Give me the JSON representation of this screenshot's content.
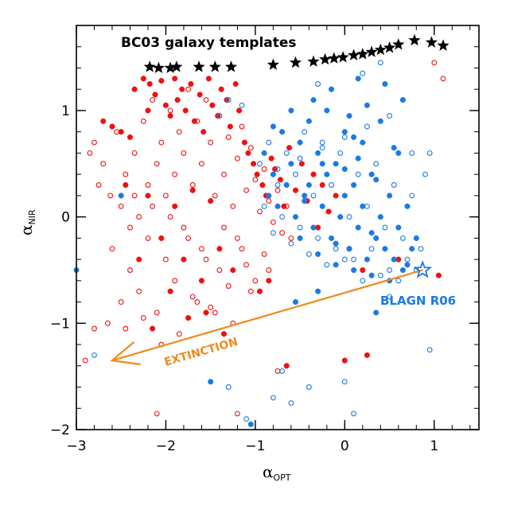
{
  "chart_data": {
    "type": "scatter",
    "title": "",
    "xlabel": {
      "main": "α",
      "sub": "OPT"
    },
    "ylabel": {
      "main": "α",
      "sub": "NIR"
    },
    "xlim": [
      -3,
      1.5
    ],
    "ylim": [
      -2,
      1.8
    ],
    "xticks": [
      -3,
      -2,
      -1,
      0,
      1
    ],
    "xtick_labels": [
      "−3",
      "−2",
      "−1",
      "0",
      "1"
    ],
    "yticks": [
      -2,
      -1,
      0,
      1
    ],
    "ytick_labels": [
      "−2",
      "−1",
      "0",
      "1"
    ],
    "colors": {
      "red": "#ee1111",
      "blue": "#1a7ae6",
      "orange": "#f08a1c",
      "black": "#000000"
    },
    "annotations": {
      "bc03": "BC03 galaxy templates",
      "blagn": "BLAGN R06",
      "extinction": "EXTINCTION"
    },
    "extinction_arrow": {
      "from": [
        0.87,
        -0.5
      ],
      "to": [
        -2.6,
        -1.35
      ]
    },
    "blagn_point": [
      0.87,
      -0.5
    ],
    "bc03_templates": {
      "x": [
        -2.18,
        -2.08,
        -1.95,
        -1.88,
        -1.63,
        -1.45,
        -1.27,
        -0.8,
        -0.55,
        -0.35,
        -0.22,
        -0.12,
        -0.02,
        0.1,
        0.2,
        0.3,
        0.4,
        0.5,
        0.6,
        0.78,
        0.97,
        1.1
      ],
      "y": [
        1.41,
        1.4,
        1.4,
        1.41,
        1.41,
        1.41,
        1.41,
        1.43,
        1.45,
        1.46,
        1.48,
        1.49,
        1.5,
        1.52,
        1.53,
        1.55,
        1.57,
        1.59,
        1.62,
        1.66,
        1.64,
        1.61
      ]
    },
    "series": [
      {
        "name": "red filled",
        "color": "red",
        "marker": "filled-circle",
        "x": [
          -2.7,
          -2.6,
          -2.5,
          -2.4,
          -2.35,
          -2.25,
          -2.2,
          -2.18,
          -2.12,
          -2.05,
          -2.0,
          -1.95,
          -1.9,
          -1.87,
          -1.82,
          -1.78,
          -1.72,
          -1.68,
          -1.62,
          -1.58,
          -1.52,
          -1.48,
          -1.42,
          -1.38,
          -1.32,
          -1.28,
          -1.22,
          -1.18,
          -1.12,
          -1.08,
          -1.02,
          -0.98,
          -0.92,
          -0.88,
          -0.82,
          -0.78,
          -0.72,
          -0.68,
          -0.62,
          -0.55,
          -0.48,
          -0.42,
          -0.35,
          -0.3,
          -0.25,
          -0.18,
          -0.1,
          0.05,
          0.2,
          0.6,
          1.05,
          -2.45,
          -2.2,
          -1.9,
          -1.7,
          -1.5,
          -2.05,
          -1.8,
          -1.6,
          -1.4,
          -2.3,
          -1.95,
          -1.55,
          -1.25,
          -0.95,
          -2.15,
          -1.75,
          -1.35,
          -0.85,
          -0.65,
          0.0,
          0.25
        ],
        "y": [
          0.9,
          0.85,
          0.8,
          0.75,
          1.2,
          1.3,
          1.0,
          1.25,
          1.15,
          1.28,
          1.05,
          0.95,
          1.3,
          1.1,
          1.2,
          1.0,
          1.25,
          0.9,
          1.15,
          0.8,
          1.3,
          1.05,
          0.95,
          1.2,
          1.1,
          0.85,
          1.25,
          1.0,
          0.7,
          0.6,
          0.5,
          0.4,
          0.3,
          0.2,
          0.55,
          0.45,
          0.35,
          0.1,
          0.65,
          0.25,
          0.5,
          0.15,
          0.4,
          -0.1,
          0.3,
          0.05,
          0.2,
          -0.3,
          -0.5,
          -0.4,
          -0.55,
          0.3,
          0.2,
          0.1,
          0.25,
          0.15,
          -0.2,
          -0.4,
          -0.6,
          -0.3,
          -0.4,
          -0.7,
          -0.9,
          -0.5,
          -0.7,
          -1.05,
          -0.95,
          -1.1,
          -0.6,
          -1.4,
          -1.35,
          -1.3
        ]
      },
      {
        "name": "red open",
        "color": "red",
        "marker": "open-circle",
        "x": [
          -2.85,
          -2.8,
          -2.75,
          -2.7,
          -2.62,
          -2.55,
          -2.5,
          -2.45,
          -2.4,
          -2.35,
          -2.3,
          -2.25,
          -2.2,
          -2.15,
          -2.1,
          -2.05,
          -2.0,
          -1.95,
          -1.9,
          -1.85,
          -1.8,
          -1.75,
          -1.7,
          -1.65,
          -1.6,
          -1.55,
          -1.5,
          -1.45,
          -1.4,
          -1.35,
          -1.3,
          -1.25,
          -1.2,
          -1.15,
          -1.1,
          -1.05,
          -1.0,
          -0.95,
          -0.9,
          -0.85,
          -0.8,
          -0.75,
          -0.7,
          -0.65,
          -0.6,
          -2.6,
          -2.4,
          -2.2,
          -2.0,
          -1.8,
          -1.6,
          -1.4,
          -1.2,
          -1.0,
          -2.5,
          -2.3,
          -2.1,
          -1.9,
          -1.7,
          -1.5,
          -1.3,
          -1.1,
          -0.9,
          -2.65,
          -2.45,
          -2.25,
          -2.05,
          -1.85,
          -1.65,
          -1.45,
          -1.25,
          -1.05,
          -0.85,
          -2.35,
          -2.15,
          -1.95,
          -1.75,
          -1.55,
          -1.35,
          -1.15,
          -2.8,
          -2.1,
          -1.2,
          -0.75,
          1.0,
          1.1,
          -2.9
        ],
        "y": [
          0.6,
          0.7,
          0.3,
          0.5,
          0.2,
          0.8,
          0.1,
          0.4,
          -0.1,
          0.6,
          0.0,
          0.9,
          0.3,
          1.1,
          0.5,
          0.7,
          0.2,
          1.0,
          0.4,
          0.8,
          0.6,
          1.2,
          0.3,
          0.9,
          0.5,
          1.1,
          0.7,
          0.2,
          0.95,
          0.4,
          0.75,
          0.1,
          0.55,
          0.85,
          0.25,
          0.65,
          0.35,
          0.05,
          0.45,
          0.15,
          -0.05,
          0.25,
          -0.15,
          0.1,
          -0.2,
          -0.3,
          -0.5,
          -0.2,
          -0.4,
          -0.1,
          -0.3,
          -0.5,
          -0.2,
          -0.6,
          -0.8,
          -0.7,
          -0.9,
          -0.6,
          -0.75,
          -0.85,
          -0.65,
          -0.45,
          -0.35,
          -1.0,
          -1.05,
          -0.95,
          -1.2,
          -1.1,
          -0.8,
          -0.9,
          -1.0,
          -0.7,
          -0.5,
          0.2,
          0.1,
          0.0,
          -0.2,
          -0.4,
          -0.1,
          -0.3,
          -1.05,
          -1.85,
          -1.85,
          -1.45,
          1.45,
          1.3,
          -1.35
        ]
      },
      {
        "name": "blue filled",
        "color": "blue",
        "marker": "filled-circle",
        "x": [
          -0.9,
          -0.8,
          -0.7,
          -0.6,
          -0.5,
          -0.4,
          -0.3,
          -0.2,
          -0.1,
          0.0,
          0.1,
          0.2,
          0.3,
          0.4,
          0.5,
          0.6,
          0.7,
          0.8,
          -0.85,
          -0.75,
          -0.65,
          -0.55,
          -0.45,
          -0.35,
          -0.25,
          -0.15,
          -0.05,
          0.05,
          0.15,
          0.25,
          0.35,
          0.45,
          0.55,
          0.65,
          0.75,
          -0.5,
          -0.3,
          -0.1,
          0.1,
          0.3,
          0.5,
          0.7,
          -0.4,
          -0.2,
          0.0,
          0.2,
          0.4,
          0.6,
          -0.6,
          -0.35,
          -0.15,
          0.05,
          0.25,
          0.45,
          0.65,
          -0.25,
          0.0,
          0.15,
          0.35,
          0.55,
          0.3,
          -0.1,
          -0.55,
          -1.5,
          -2.5,
          -3.0,
          -0.3,
          0.35,
          -1.05,
          0.15,
          -0.8,
          -0.45,
          0.1
        ],
        "y": [
          0.6,
          0.4,
          0.8,
          0.5,
          0.7,
          0.3,
          0.6,
          0.4,
          0.5,
          0.2,
          0.3,
          0.1,
          0.4,
          0.0,
          0.2,
          -0.1,
          0.1,
          -0.2,
          0.2,
          0.1,
          0.3,
          0.0,
          0.2,
          -0.1,
          0.1,
          -0.2,
          0.0,
          -0.3,
          -0.1,
          -0.4,
          -0.2,
          -0.3,
          -0.4,
          -0.5,
          -0.3,
          -0.2,
          -0.35,
          -0.45,
          -0.5,
          -0.55,
          -0.6,
          -0.45,
          0.9,
          1.0,
          0.8,
          0.7,
          0.9,
          0.6,
          1.0,
          1.1,
          1.2,
          0.95,
          1.05,
          1.25,
          1.1,
          0.5,
          0.45,
          0.55,
          0.35,
          0.65,
          -0.15,
          -0.25,
          -0.8,
          -1.55,
          0.2,
          -0.5,
          -0.7,
          -0.9,
          -1.95,
          1.3,
          0.85,
          0.15,
          0.75
        ]
      },
      {
        "name": "blue open",
        "color": "blue",
        "marker": "open-circle",
        "x": [
          -0.95,
          -0.85,
          -0.75,
          -0.65,
          -0.55,
          -0.45,
          -0.35,
          -0.25,
          -0.15,
          -0.05,
          0.05,
          0.15,
          0.25,
          0.35,
          0.45,
          0.55,
          0.65,
          0.75,
          0.85,
          -0.9,
          -0.7,
          -0.5,
          -0.3,
          -0.1,
          0.1,
          0.3,
          0.5,
          0.7,
          -0.8,
          -0.6,
          -0.4,
          -0.2,
          0.0,
          0.2,
          0.4,
          0.6,
          0.8,
          -0.75,
          -0.5,
          -0.25,
          0.0,
          0.25,
          0.5,
          0.75,
          0.9,
          0.95,
          -1.3,
          -1.15,
          -1.4,
          -2.8,
          -0.7,
          -0.4,
          0.0,
          0.1,
          0.5,
          0.95,
          -1.3,
          -0.8,
          -0.6,
          -1.1,
          -0.3,
          0.2,
          0.4
        ],
        "y": [
          0.5,
          0.7,
          0.3,
          0.6,
          0.4,
          0.8,
          0.2,
          0.7,
          0.3,
          0.6,
          0.0,
          0.4,
          0.1,
          0.5,
          -0.1,
          0.3,
          -0.2,
          0.2,
          -0.3,
          0.1,
          0.0,
          -0.1,
          -0.2,
          -0.3,
          -0.4,
          -0.3,
          -0.5,
          -0.4,
          -0.15,
          -0.25,
          -0.35,
          -0.45,
          -0.4,
          -0.6,
          -0.55,
          -0.6,
          -0.5,
          0.45,
          0.55,
          0.65,
          0.75,
          0.85,
          0.95,
          0.6,
          0.4,
          0.6,
          1.1,
          1.05,
          0.95,
          -1.3,
          -1.45,
          -1.6,
          -1.55,
          -1.85,
          -0.75,
          -1.25,
          -1.6,
          -1.7,
          -1.75,
          -1.9,
          1.25,
          1.35,
          1.45
        ]
      }
    ]
  }
}
